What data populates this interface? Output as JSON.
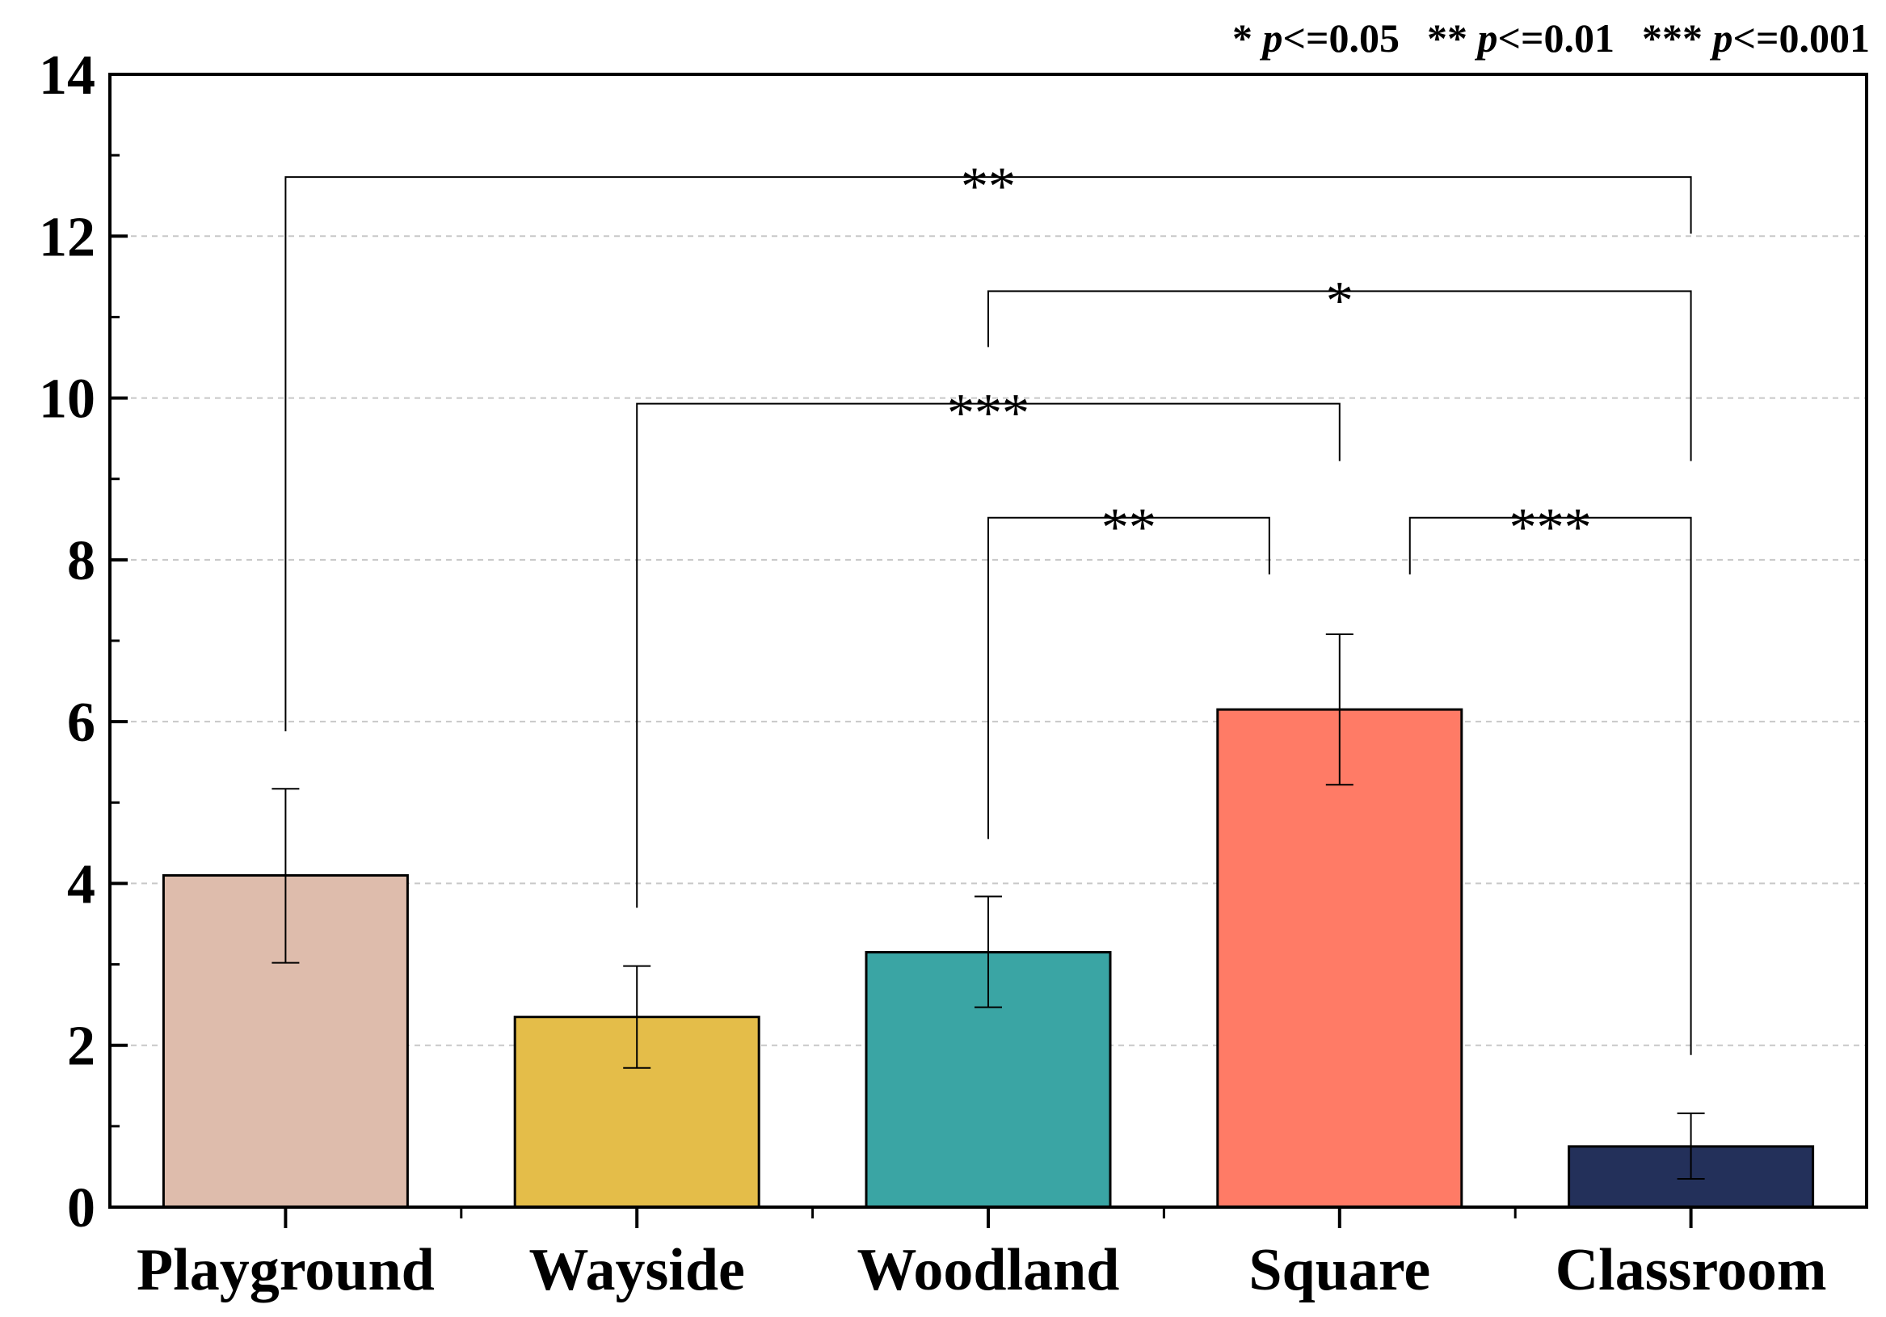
{
  "chart_data": {
    "type": "bar",
    "categories": [
      "Playground",
      "Wayside",
      "Woodland",
      "Square",
      "Classroom"
    ],
    "values": [
      4.1,
      2.35,
      3.15,
      6.15,
      0.75
    ],
    "errors": [
      [
        3.02,
        5.17
      ],
      [
        1.72,
        2.98
      ],
      [
        2.47,
        3.84
      ],
      [
        5.22,
        7.08
      ],
      [
        0.35,
        1.16
      ]
    ],
    "colors": [
      "#DEBCAC",
      "#E4BD49",
      "#3AA5A4",
      "#FF7B66",
      "#23305A"
    ],
    "ylim": [
      0,
      14
    ],
    "yticks": [
      "0",
      "2",
      "4",
      "6",
      "8",
      "10",
      "12",
      "14"
    ],
    "ytick_values": [
      0,
      2,
      4,
      6,
      8,
      10,
      12,
      14
    ],
    "grid": true,
    "title": "",
    "xlabel": "",
    "ylabel": "",
    "significance": [
      {
        "from": 0,
        "to": 4,
        "label": "**",
        "level": 12.73,
        "start_y": [
          5.88,
          12.03
        ]
      },
      {
        "from": 2,
        "to": 4,
        "label": "*",
        "level": 11.32,
        "start_y": [
          10.63,
          9.22
        ]
      },
      {
        "from": 1,
        "to": 3,
        "label": "***",
        "level": 9.93,
        "start_y": [
          3.7,
          9.22
        ]
      },
      {
        "from": 2,
        "to": 3,
        "label": "**",
        "level": 8.52,
        "start_y": [
          4.55,
          7.82
        ],
        "end_shift": -0.2
      },
      {
        "from": 3,
        "to": 4,
        "label": "***",
        "level": 8.52,
        "start_y": [
          7.82,
          1.88
        ],
        "start_shift": 0.2
      }
    ]
  },
  "legend": {
    "items": [
      {
        "stars": "*",
        "p": "p",
        "op": "<=0.05"
      },
      {
        "stars": "**",
        "p": "p",
        "op": "<=0.01"
      },
      {
        "stars": "***",
        "p": "p",
        "op": "<=0.001"
      }
    ]
  }
}
